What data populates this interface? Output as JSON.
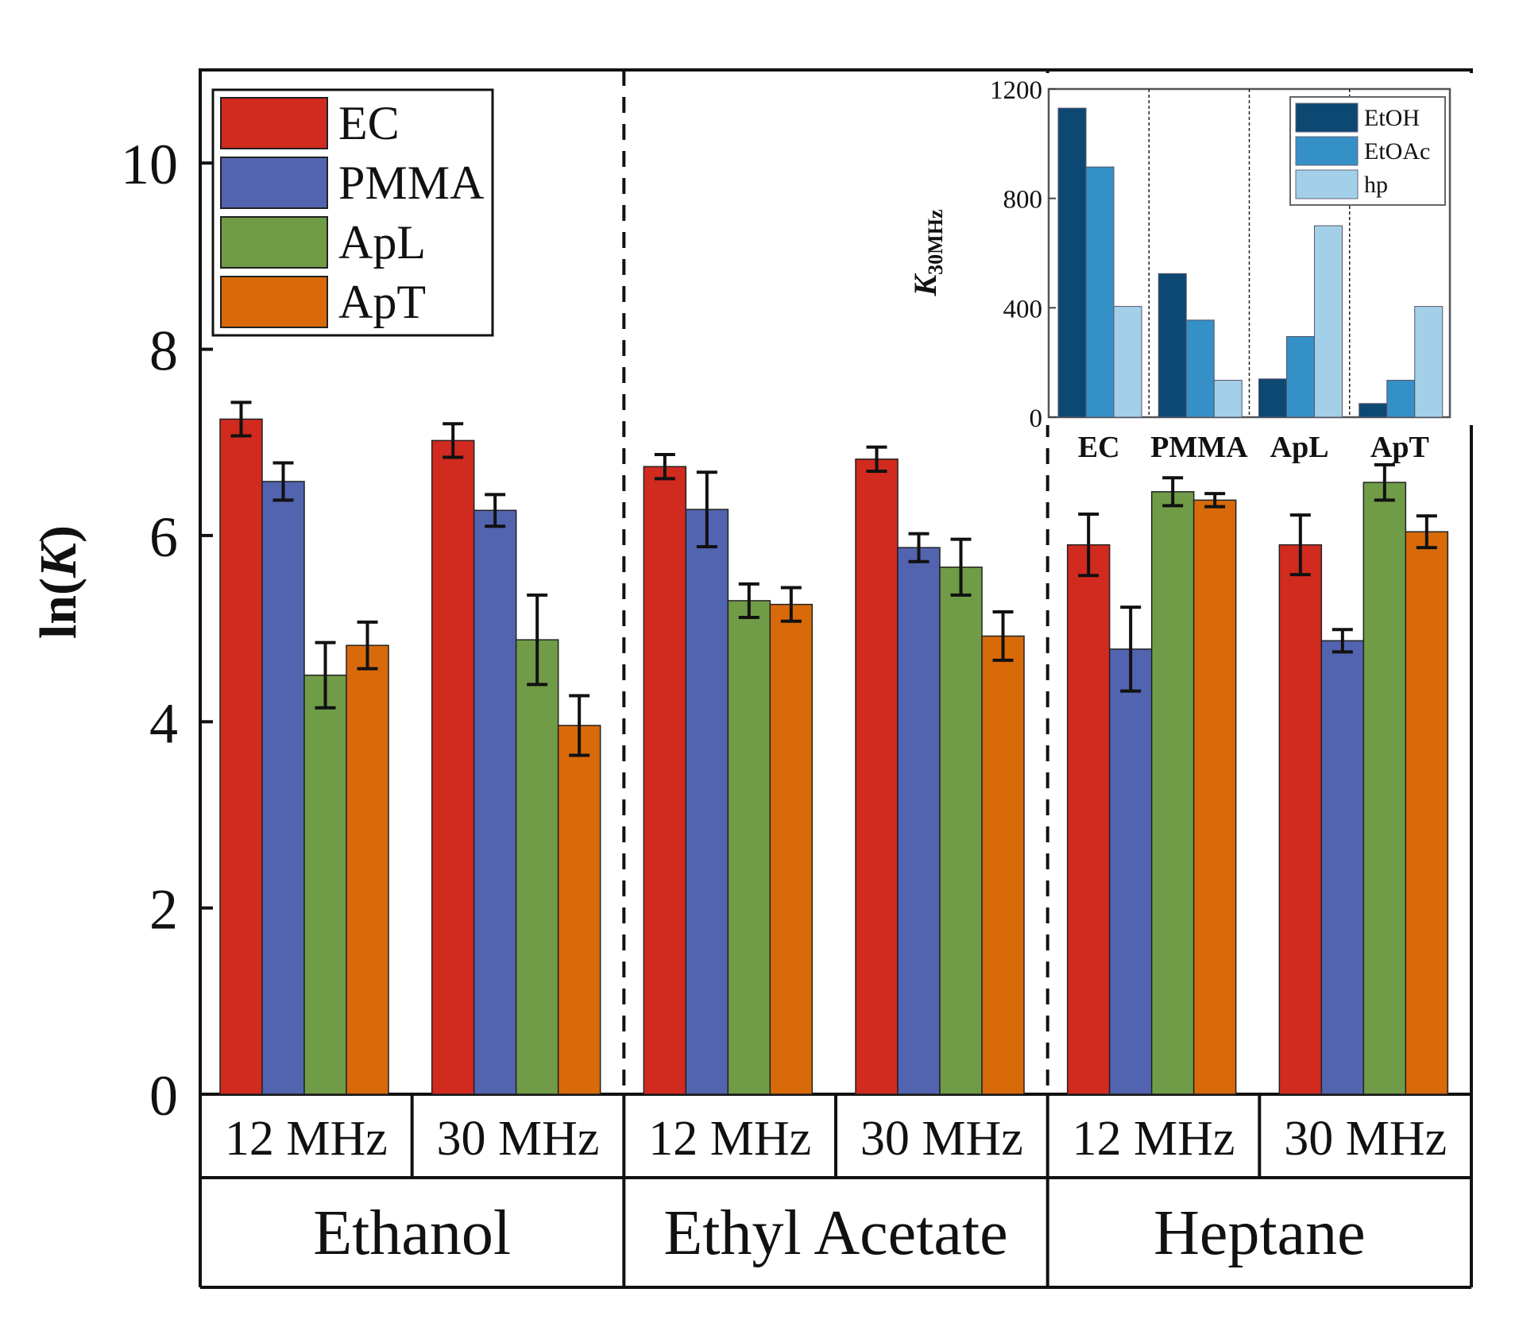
{
  "chart_data": [
    {
      "type": "bar",
      "ylabel_prefix": "ln(",
      "ylabel_italic": "K",
      "ylabel_suffix": ")",
      "ylim": [
        0,
        11
      ],
      "yticks": [
        "0",
        "2",
        "4",
        "6",
        "8",
        "10"
      ],
      "ytick_values": [
        0,
        2,
        4,
        6,
        8,
        10
      ],
      "legend_position": "top-left",
      "series": [
        {
          "name": "EC",
          "color": "#d12a1f"
        },
        {
          "name": "PMMA",
          "color": "#5264b0"
        },
        {
          "name": "ApL",
          "color": "#709c47"
        },
        {
          "name": "ApT",
          "color": "#d86a0a"
        }
      ],
      "groups": [
        {
          "solvent": "Ethanol",
          "freqs": [
            {
              "label": "12 MHz",
              "values": [
                7.25,
                6.58,
                4.5,
                4.82
              ],
              "errors": [
                0.18,
                0.2,
                0.35,
                0.25
              ]
            },
            {
              "label": "30 MHz",
              "values": [
                7.02,
                6.27,
                4.88,
                3.96
              ],
              "errors": [
                0.18,
                0.17,
                0.48,
                0.32
              ]
            }
          ]
        },
        {
          "solvent": "Ethyl Acetate",
          "freqs": [
            {
              "label": "12 MHz",
              "values": [
                6.74,
                6.28,
                5.3,
                5.26
              ],
              "errors": [
                0.13,
                0.4,
                0.18,
                0.18
              ]
            },
            {
              "label": "30 MHz",
              "values": [
                6.82,
                5.87,
                5.66,
                4.92
              ],
              "errors": [
                0.13,
                0.15,
                0.3,
                0.26
              ]
            }
          ]
        },
        {
          "solvent": "Heptane",
          "freqs": [
            {
              "label": "12 MHz",
              "values": [
                5.9,
                4.78,
                6.47,
                6.38
              ],
              "errors": [
                0.33,
                0.45,
                0.15,
                0.07
              ]
            },
            {
              "label": "30 MHz",
              "values": [
                5.9,
                4.87,
                6.57,
                6.04
              ],
              "errors": [
                0.32,
                0.12,
                0.19,
                0.17
              ]
            }
          ]
        }
      ]
    },
    {
      "type": "bar",
      "ylabel_italic": "K",
      "ylabel_sub": "30MHz",
      "ylim": [
        0,
        1200
      ],
      "yticks": [
        "0",
        "400",
        "800",
        "1200"
      ],
      "ytick_values": [
        0,
        400,
        800,
        1200
      ],
      "legend_position": "top-right",
      "categories": [
        "EC",
        "PMMA",
        "ApL",
        "ApT"
      ],
      "series": [
        {
          "name": "EtOH",
          "color": "#0d4873",
          "values": [
            1130,
            525,
            140,
            50
          ]
        },
        {
          "name": "EtOAc",
          "color": "#3690c8",
          "values": [
            915,
            355,
            295,
            135
          ]
        },
        {
          "name": "hp",
          "color": "#a3d0e8",
          "values": [
            405,
            135,
            700,
            405
          ]
        }
      ]
    }
  ]
}
